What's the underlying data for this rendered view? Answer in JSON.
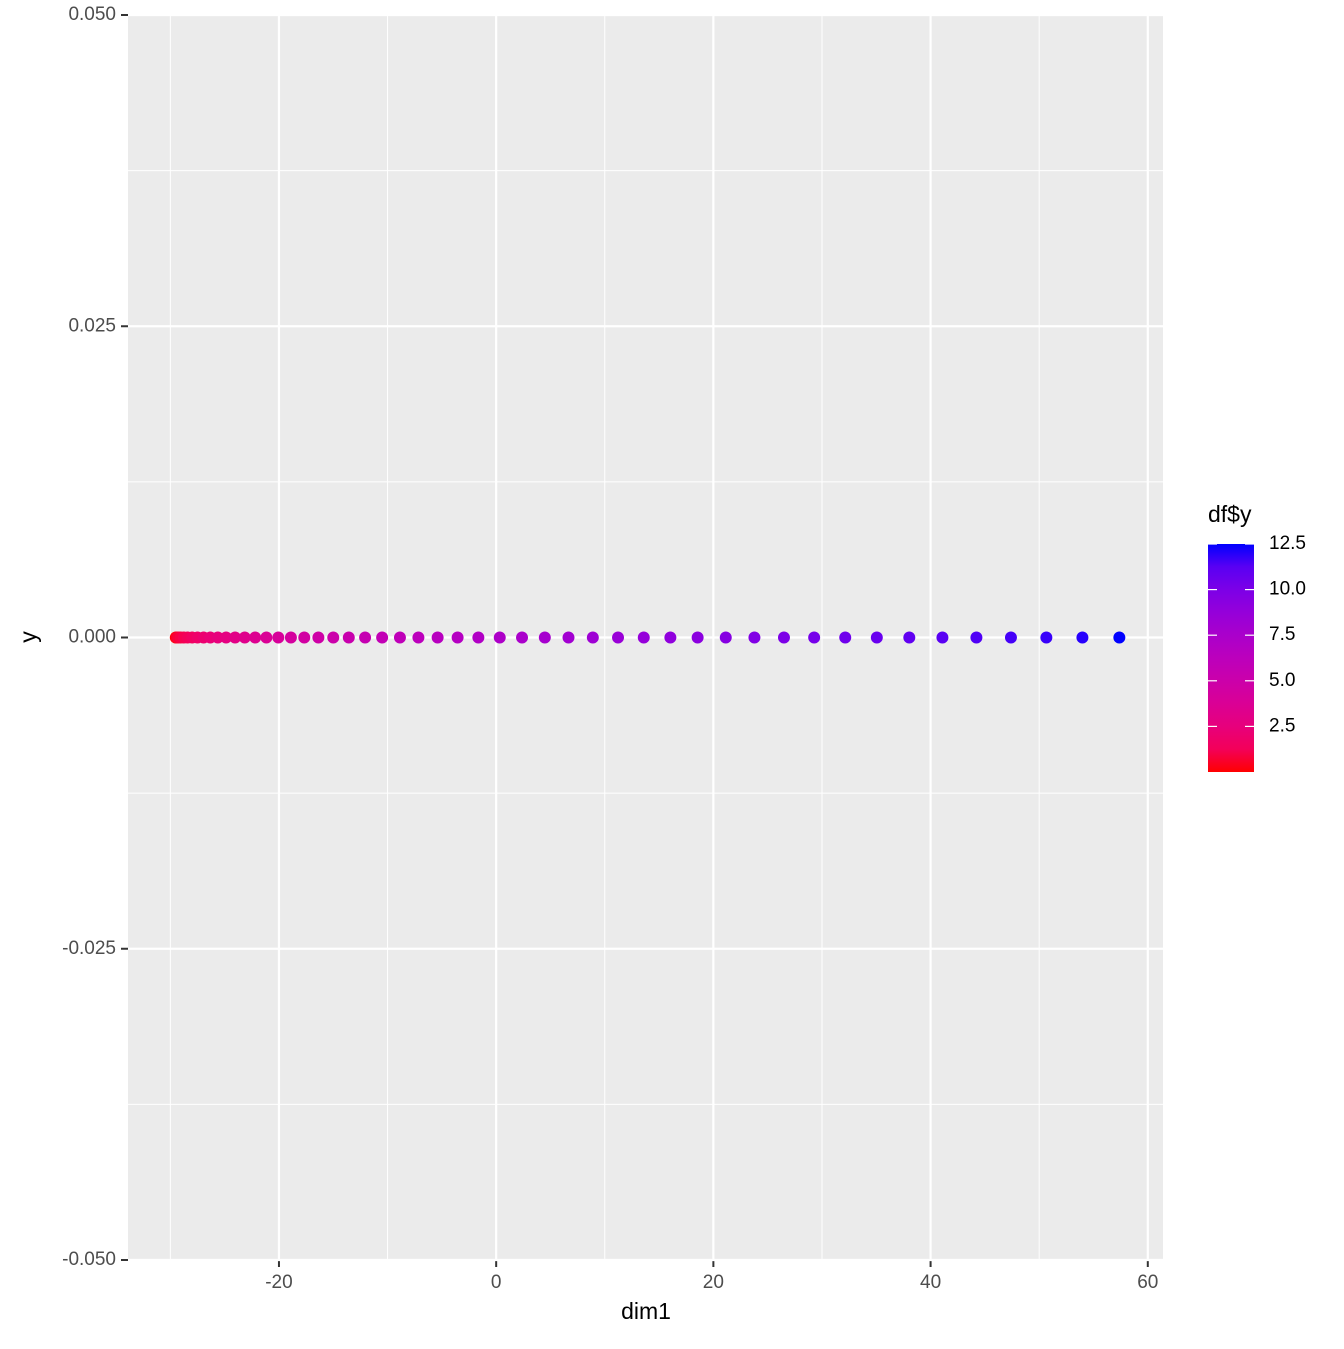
{
  "chart_data": {
    "type": "scatter",
    "x_label": "dim1",
    "y_label": "y",
    "legend_title": "df$y",
    "x": [
      -29.5,
      -29.42,
      -29.27,
      -29.05,
      -28.76,
      -28.41,
      -27.99,
      -27.5,
      -26.94,
      -26.32,
      -25.63,
      -24.87,
      -24.04,
      -23.15,
      -22.19,
      -21.16,
      -20.06,
      -18.9,
      -17.67,
      -16.37,
      -15,
      -13.57,
      -12.07,
      -10.5,
      -8.86,
      -7.16,
      -5.39,
      -3.55,
      -1.64,
      0.33,
      2.38,
      4.48,
      6.66,
      8.9,
      11.22,
      13.59,
      16.04,
      18.55,
      21.14,
      23.78,
      26.5,
      29.28,
      32.14,
      35.05,
      38.04,
      41.09,
      44.22,
      47.4,
      50.66,
      53.98,
      57.38
    ],
    "y": [
      0,
      0,
      0,
      0,
      0,
      0,
      0,
      0,
      0,
      0,
      0,
      0,
      0,
      0,
      0,
      0,
      0,
      0,
      0,
      0,
      0,
      0,
      0,
      0,
      0,
      0,
      0,
      0,
      0,
      0,
      0,
      0,
      0,
      0,
      0,
      0,
      0,
      0,
      0,
      0,
      0,
      0,
      0,
      0,
      0,
      0,
      0,
      0,
      0,
      0,
      0
    ],
    "color_values": [
      0,
      0.25,
      0.5,
      0.75,
      1,
      1.25,
      1.5,
      1.75,
      2,
      2.25,
      2.5,
      2.75,
      3,
      3.25,
      3.5,
      3.75,
      4,
      4.25,
      4.5,
      4.75,
      5,
      5.25,
      5.5,
      5.75,
      6,
      6.25,
      6.5,
      6.75,
      7,
      7.25,
      7.5,
      7.75,
      8,
      8.25,
      8.5,
      8.75,
      9,
      9.25,
      9.5,
      9.75,
      10,
      10.25,
      10.5,
      10.75,
      11,
      11.25,
      11.5,
      11.75,
      12,
      12.25,
      12.5
    ],
    "color_low": "#ff0000",
    "color_high": "#0000ff",
    "colorlim": [
      0,
      12.5
    ],
    "colorticks": [
      2.5,
      {
        "value": 5,
        "label": "5.0"
      },
      7.5,
      {
        "value": 10,
        "label": "10.0"
      },
      12.5
    ],
    "xlim": [
      -33.9,
      61.4
    ],
    "xticks": [
      -20,
      0,
      20,
      40,
      60
    ],
    "ylim": [
      -0.05,
      0.05
    ],
    "yticks": [
      {
        "value": -0.05,
        "label": "-0.050"
      },
      {
        "value": -0.025,
        "label": "-0.025"
      },
      {
        "value": 0,
        "label": "0.000"
      },
      {
        "value": 0.025,
        "label": "0.025"
      },
      {
        "value": 0.05,
        "label": "0.050"
      }
    ],
    "grid": true
  }
}
